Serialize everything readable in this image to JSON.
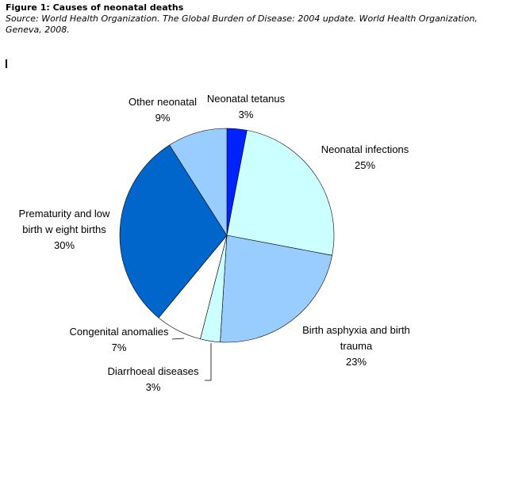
{
  "figure": {
    "title": "Figure 1: Causes of neonatal deaths",
    "source": "Source: World Health Organization. The Global Burden of Disease: 2004 update. World Health Organization, Geneva, 2008."
  },
  "chart_data": {
    "type": "pie",
    "title": "",
    "slices": [
      {
        "label": [
          "Neonatal tetanus"
        ],
        "pct_label": "3%",
        "value": 3,
        "color": "#0022ff"
      },
      {
        "label": [
          "Neonatal infections"
        ],
        "pct_label": "25%",
        "value": 25,
        "color": "#ccffff"
      },
      {
        "label": [
          "Birth asphyxia and birth",
          "trauma"
        ],
        "pct_label": "23%",
        "value": 23,
        "color": "#99ccff"
      },
      {
        "label": [
          "Diarrhoeal diseases"
        ],
        "pct_label": "3%",
        "value": 3,
        "color": "#ccffff"
      },
      {
        "label": [
          "Congenital anomalies"
        ],
        "pct_label": "7%",
        "value": 7,
        "color": "#ffffff"
      },
      {
        "label": [
          "Prematurity and low",
          "birth w eight births"
        ],
        "pct_label": "30%",
        "value": 30,
        "color": "#0066cc"
      },
      {
        "label": [
          "Other neonatal"
        ],
        "pct_label": "9%",
        "value": 9,
        "color": "#99ccff"
      }
    ]
  }
}
